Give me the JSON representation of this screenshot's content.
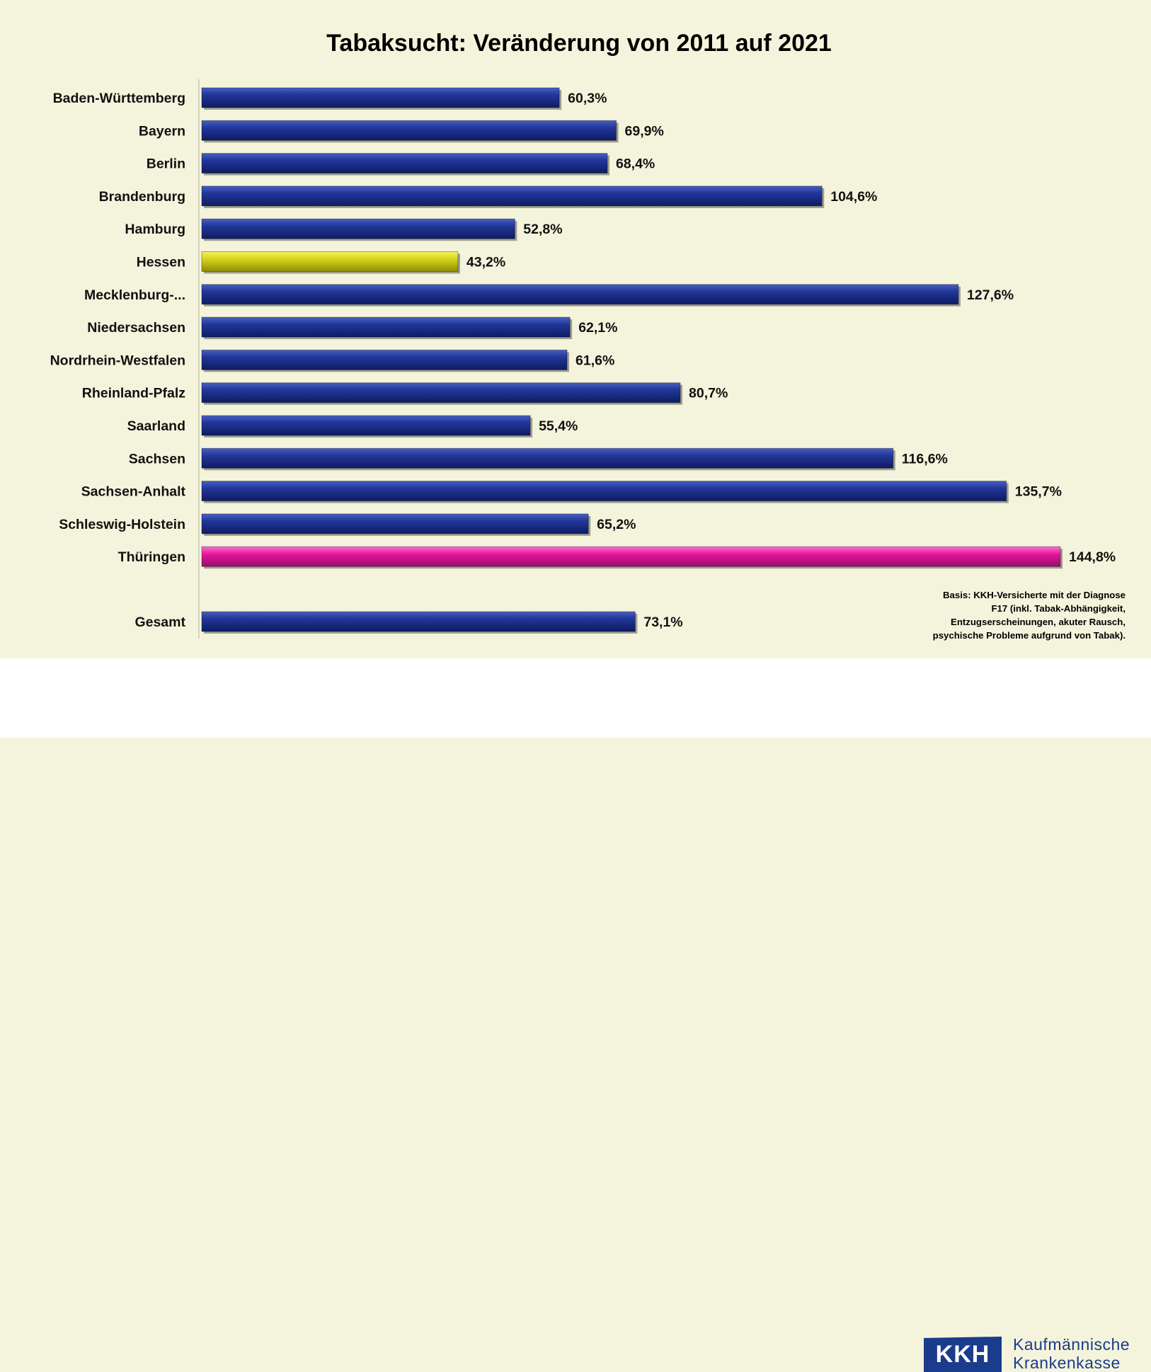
{
  "chart_data": {
    "type": "bar",
    "orientation": "horizontal",
    "title": "Tabaksucht: Veränderung von 2011 auf 2021",
    "xlabel": "",
    "ylabel": "",
    "xlim": [
      0,
      150
    ],
    "grid": false,
    "categories": [
      "Baden-Württemberg",
      "Bayern",
      "Berlin",
      "Brandenburg",
      "Hamburg",
      "Hessen",
      "Mecklenburg-...",
      "Niedersachsen",
      "Nordrhein-Westfalen",
      "Rheinland-Pfalz",
      "Saarland",
      "Sachsen",
      "Sachsen-Anhalt",
      "Schleswig-Holstein",
      "Thüringen",
      "Gesamt"
    ],
    "values": [
      60.3,
      69.9,
      68.4,
      104.6,
      52.8,
      43.2,
      127.6,
      62.1,
      61.6,
      80.7,
      55.4,
      116.6,
      135.7,
      65.2,
      144.8,
      73.1
    ],
    "value_labels": [
      "60,3%",
      "69,9%",
      "68,4%",
      "104,6%",
      "52,8%",
      "43,2%",
      "127,6%",
      "62,1%",
      "61,6%",
      "80,7%",
      "55,4%",
      "116,6%",
      "135,7%",
      "65,2%",
      "144,8%",
      "73,1%"
    ],
    "bar_colors": [
      "#1b2f86",
      "#1b2f86",
      "#1b2f86",
      "#1b2f86",
      "#1b2f86",
      "#d6d61a",
      "#1b2f86",
      "#1b2f86",
      "#1b2f86",
      "#1b2f86",
      "#1b2f86",
      "#1b2f86",
      "#1b2f86",
      "#1b2f86",
      "#e0169a",
      "#1b2f86"
    ],
    "footnote": [
      "Basis: KKH-Versicherte mit der Diagnose",
      "F17 (inkl. Tabak-Abhängigkeit,",
      "Entzugserscheinungen, akuter Rausch,",
      "psychische Probleme aufgrund von Tabak)."
    ]
  },
  "logo": {
    "mark": "KKH",
    "line1": "Kaufmännische",
    "line2": "Krankenkasse",
    "color": "#1b3b8c"
  }
}
